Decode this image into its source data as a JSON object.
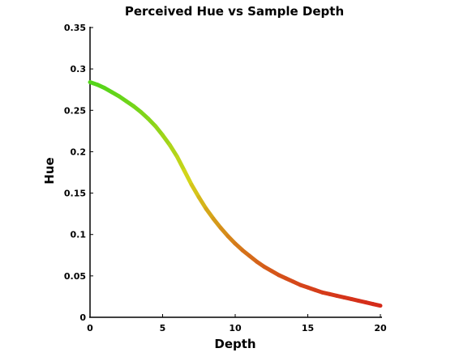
{
  "chart_data": {
    "type": "line",
    "title": "Perceived Hue vs Sample Depth",
    "xlabel": "Depth",
    "ylabel": "Hue",
    "xlim": [
      0,
      20
    ],
    "ylim": [
      0,
      0.35
    ],
    "x_ticks": [
      "0",
      "5",
      "10",
      "15",
      "20"
    ],
    "y_ticks": [
      "0",
      "0.05",
      "0.1",
      "0.15",
      "0.2",
      "0.25",
      "0.3",
      "0.35"
    ],
    "grid": false,
    "legend": "none",
    "line_color_scale": "hue-mapped: color of each point equals its hue value (green at high hue, red at low hue)",
    "series": [
      {
        "x": [
          0,
          0.5,
          1,
          1.5,
          2,
          2.5,
          3,
          3.5,
          4,
          4.5,
          5,
          5.5,
          6,
          6.5,
          7,
          7.5,
          8,
          8.5,
          9,
          9.5,
          10,
          10.5,
          11,
          11.5,
          12,
          12.5,
          13,
          13.5,
          14,
          14.5,
          15,
          15.5,
          16,
          16.5,
          17,
          17.5,
          18,
          18.5,
          19,
          19.5,
          20
        ],
        "y": [
          0.284,
          0.281,
          0.277,
          0.272,
          0.267,
          0.261,
          0.255,
          0.248,
          0.24,
          0.231,
          0.22,
          0.208,
          0.194,
          0.177,
          0.16,
          0.145,
          0.131,
          0.119,
          0.108,
          0.098,
          0.089,
          0.081,
          0.074,
          0.067,
          0.061,
          0.056,
          0.051,
          0.047,
          0.043,
          0.039,
          0.036,
          0.033,
          0.03,
          0.028,
          0.026,
          0.024,
          0.022,
          0.02,
          0.018,
          0.016,
          0.014
        ]
      }
    ]
  }
}
